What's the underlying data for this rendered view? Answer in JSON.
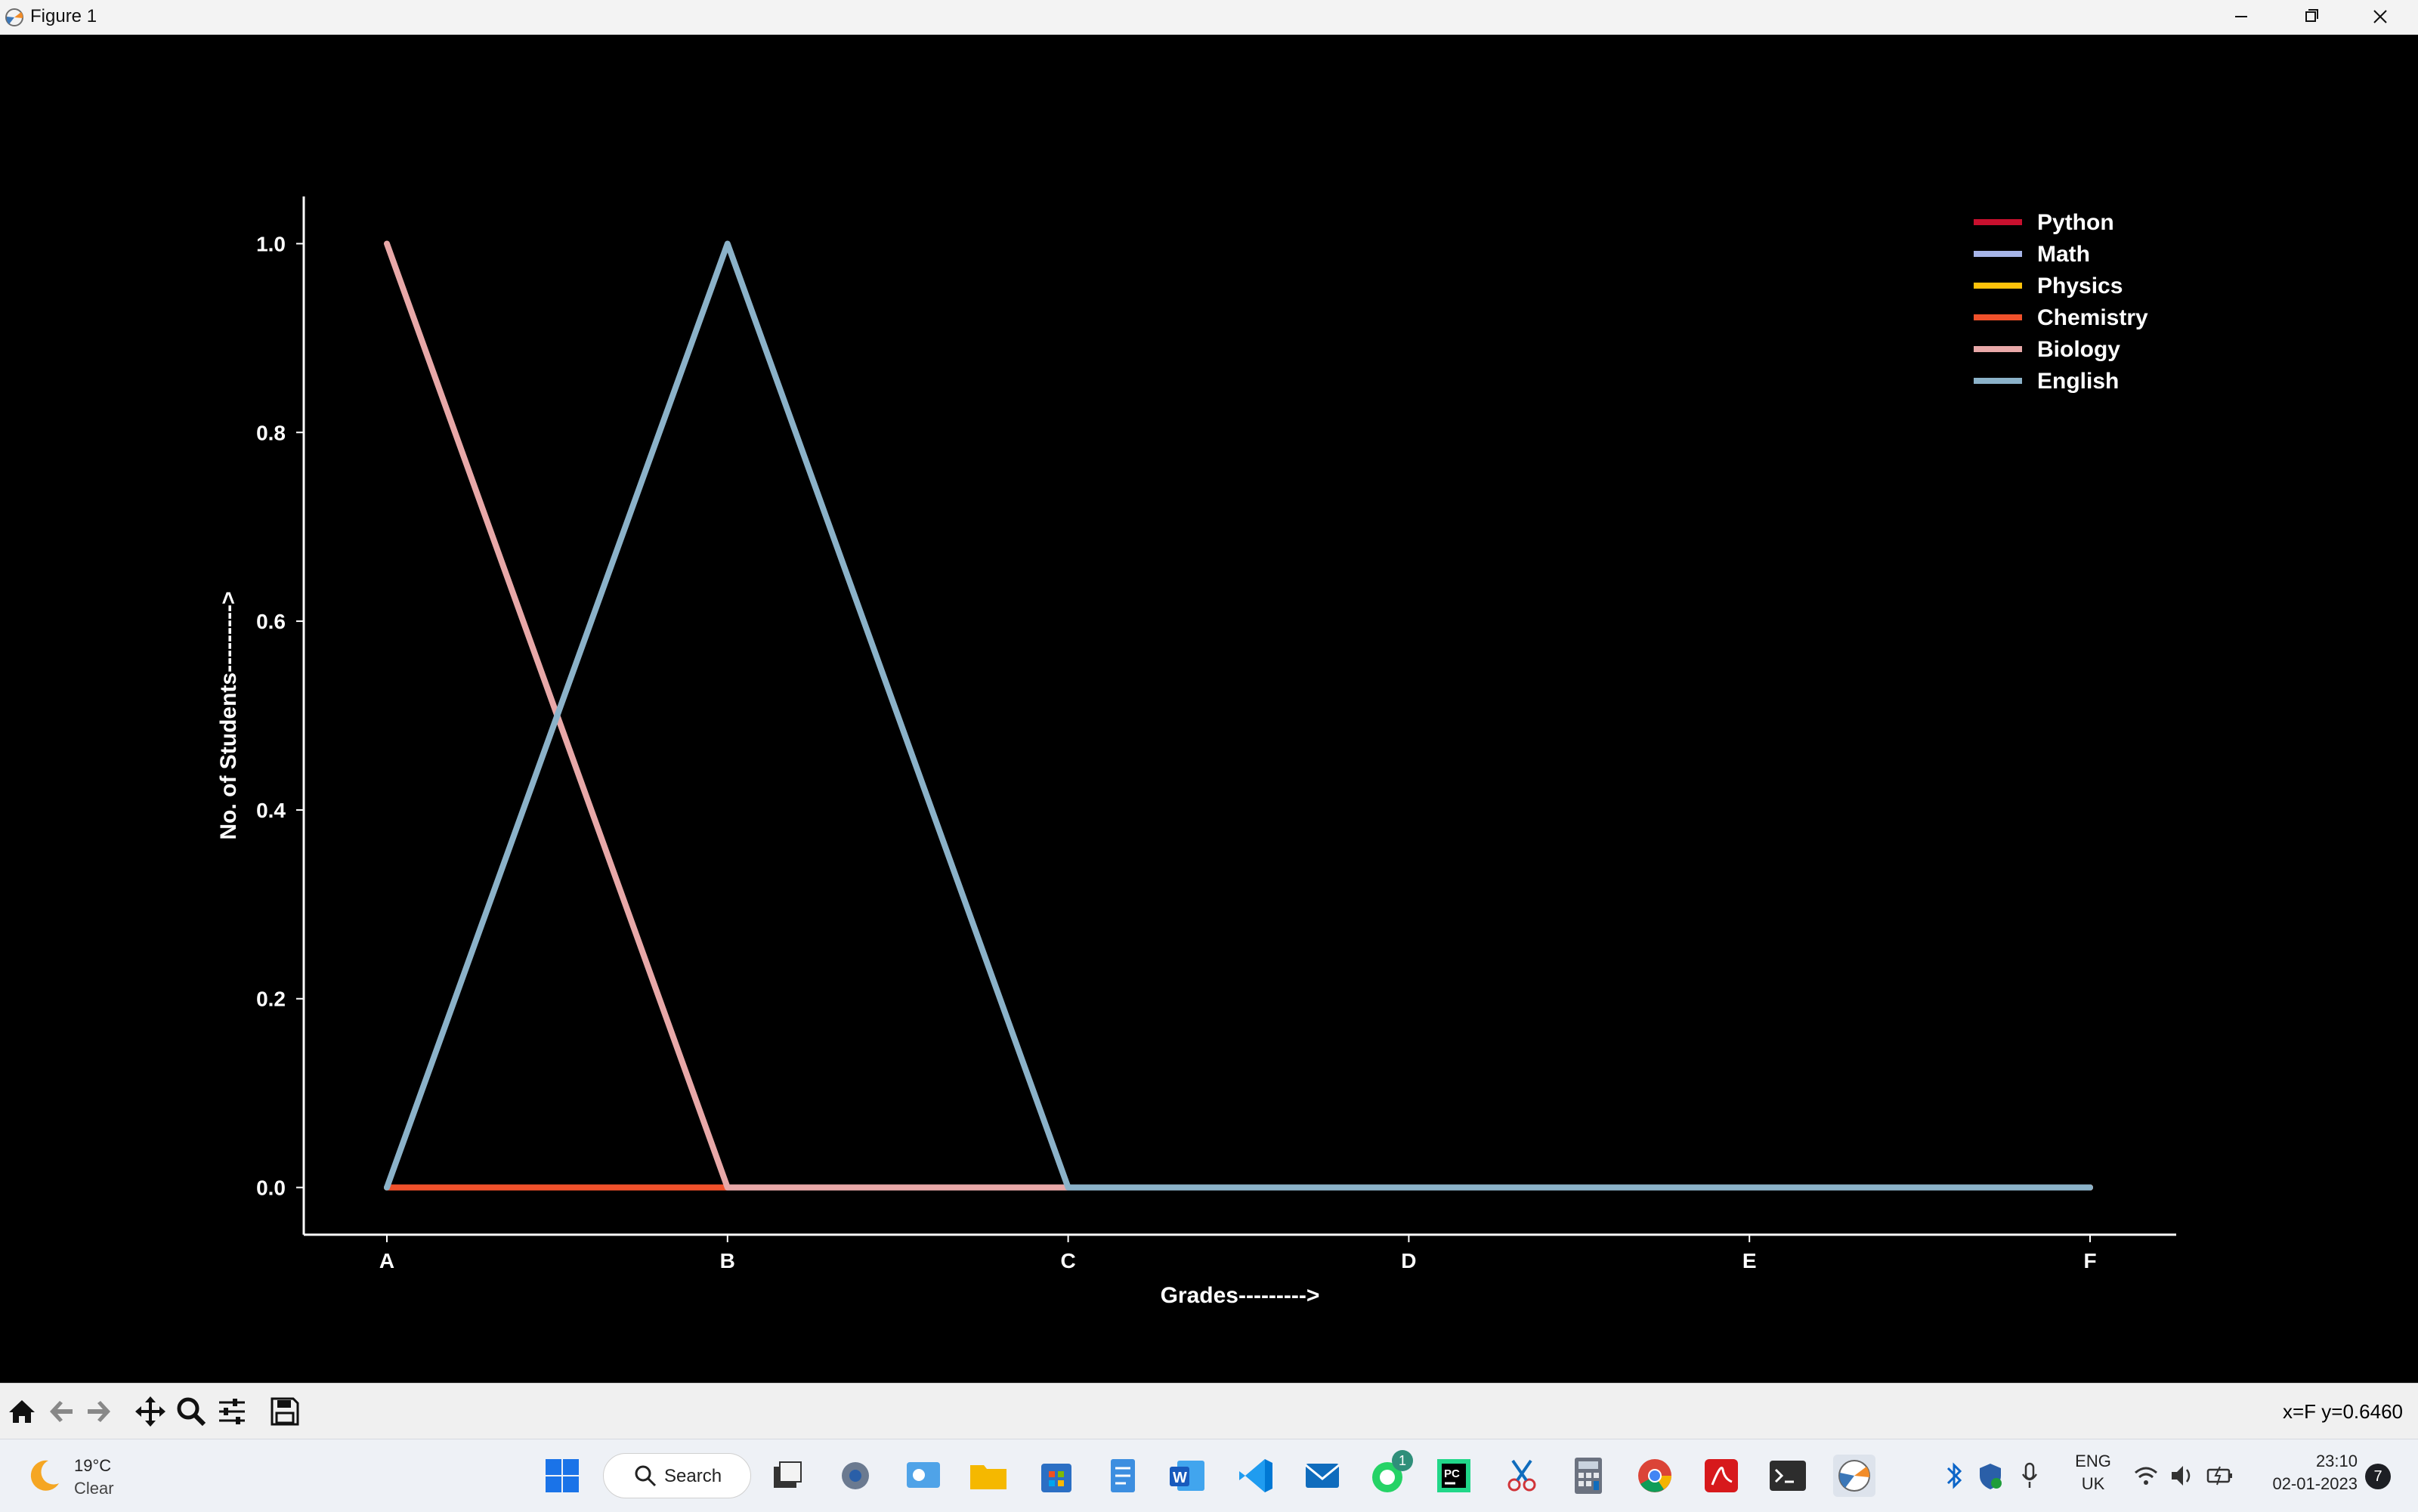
{
  "window": {
    "title": "Figure 1",
    "controls": [
      "minimize",
      "maximize",
      "close"
    ]
  },
  "chart_data": {
    "type": "line",
    "categories": [
      "A",
      "B",
      "C",
      "D",
      "E",
      "F"
    ],
    "xlabel": "Grades--------->",
    "ylabel": "No. of Students--------->",
    "ylim": [
      -0.05,
      1.05
    ],
    "yticks": [
      "0.0",
      "0.2",
      "0.4",
      "0.6",
      "0.8",
      "1.0"
    ],
    "grid": false,
    "legend_position": "top-right",
    "series": [
      {
        "name": "Python",
        "color": "#c8102e",
        "values": [
          0,
          0,
          0,
          0,
          0,
          0
        ]
      },
      {
        "name": "Math",
        "color": "#a6b4e8",
        "values": [
          0,
          0,
          0,
          0,
          0,
          0
        ]
      },
      {
        "name": "Physics",
        "color": "#ffc20a",
        "values": [
          0,
          0,
          0,
          0,
          0,
          0
        ]
      },
      {
        "name": "Chemistry",
        "color": "#f0512b",
        "values": [
          0,
          0,
          0,
          0,
          0,
          0
        ]
      },
      {
        "name": "Biology",
        "color": "#e8a8a8",
        "values": [
          1,
          0,
          0,
          0,
          0,
          0
        ]
      },
      {
        "name": "English",
        "color": "#8bb2c9",
        "values": [
          0,
          1,
          0,
          0,
          0,
          0
        ]
      }
    ]
  },
  "toolbar": {
    "buttons": [
      "home-icon",
      "back-icon",
      "forward-icon",
      "pan-icon",
      "zoom-icon",
      "configure-icon",
      "save-icon"
    ],
    "coordinates": "x=F y=0.6460"
  },
  "taskbar": {
    "weather": {
      "temperature": "19°C",
      "condition": "Clear"
    },
    "search_label": "Search",
    "apps": [
      "start-icon",
      "task-view-icon",
      "settings-icon",
      "widgets-icon",
      "file-explorer-icon",
      "store-icon",
      "notepad-icon",
      "word-icon",
      "vscode-icon",
      "mail-icon",
      "whatsapp-icon",
      "pycharm-icon",
      "snipping-tool-icon",
      "calculator-icon",
      "chrome-icon",
      "acrobat-icon",
      "terminal-icon",
      "matplotlib-icon"
    ],
    "whatsapp_badge": "1",
    "language": {
      "line1": "ENG",
      "line2": "UK"
    },
    "time": "23:10",
    "date": "02-01-2023",
    "notifications": "7"
  }
}
